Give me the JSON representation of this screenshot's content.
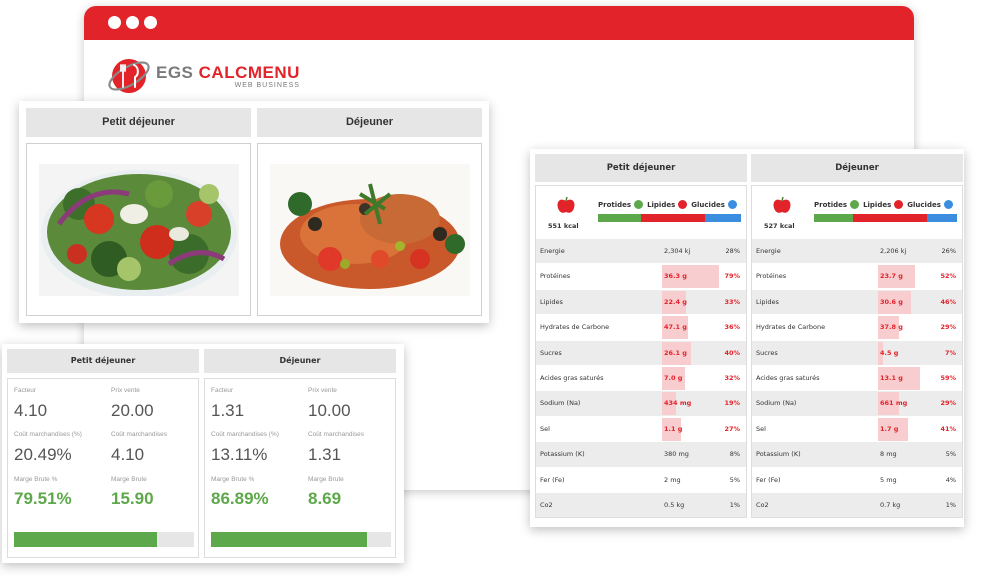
{
  "app": {
    "brand_main_1": "EGS",
    "brand_main_2": "CALCMENU",
    "brand_sub": "WEB BUSINESS"
  },
  "colors": {
    "accent": "#e2232a",
    "green": "#5da84a",
    "header_bg": "#e6e6e6",
    "blue": "#3b8de0"
  },
  "photos": [
    {
      "label": "Petit déjeuner",
      "image": "salad-photo"
    },
    {
      "label": "Déjeuner",
      "image": "chicken-dish-photo"
    }
  ],
  "pricing": [
    {
      "label": "Petit déjeuner",
      "facteur_label": "Facteur",
      "facteur": "4.10",
      "prix_label": "Prix vente",
      "prix": "20.00",
      "cout_pct_label": "Coût marchandises (%)",
      "cout_pct": "20.49%",
      "cout_label": "Coût marchandises",
      "cout": "4.10",
      "marge_pct_label": "Marge Brute %",
      "marge_pct": "79.51%",
      "marge_label": "Marge Brute",
      "marge": "15.90",
      "progress": 0.795
    },
    {
      "label": "Déjeuner",
      "facteur_label": "Facteur",
      "facteur": "1.31",
      "prix_label": "Prix vente",
      "prix": "10.00",
      "cout_pct_label": "Coût marchandises (%)",
      "cout_pct": "13.11%",
      "cout_label": "Coût marchandises",
      "cout": "1.31",
      "marge_pct_label": "Marge Brute %",
      "marge_pct": "86.89%",
      "marge_label": "Marge Brute",
      "marge": "8.69",
      "progress": 0.869
    }
  ],
  "nutrition": [
    {
      "label": "Petit déjeuner",
      "kcal": "551 kcal",
      "legend": [
        "Protides",
        "Lipides",
        "Glucides"
      ],
      "macro": [
        0.3,
        0.45,
        0.25
      ],
      "rows": [
        {
          "name": "Energie",
          "value": "2,304 kj",
          "pct": "28%",
          "level": 0,
          "alert": false
        },
        {
          "name": "Protéines",
          "value": "36.3 g",
          "pct": "79%",
          "level": 0.79,
          "alert": true
        },
        {
          "name": "Lipides",
          "value": "22.4 g",
          "pct": "33%",
          "level": 0.33,
          "alert": true
        },
        {
          "name": "Hydrates de Carbone",
          "value": "47.1 g",
          "pct": "36%",
          "level": 0.36,
          "alert": true
        },
        {
          "name": "Sucres",
          "value": "26.1 g",
          "pct": "40%",
          "level": 0.4,
          "alert": true
        },
        {
          "name": "Acides gras saturés",
          "value": "7.0 g",
          "pct": "32%",
          "level": 0.32,
          "alert": true
        },
        {
          "name": "Sodium (Na)",
          "value": "434 mg",
          "pct": "19%",
          "level": 0.19,
          "alert": true
        },
        {
          "name": "Sel",
          "value": "1.1 g",
          "pct": "27%",
          "level": 0.27,
          "alert": true
        },
        {
          "name": "Potassium (K)",
          "value": "380 mg",
          "pct": "8%",
          "level": 0,
          "alert": false
        },
        {
          "name": "Fer (Fe)",
          "value": "2 mg",
          "pct": "5%",
          "level": 0,
          "alert": false
        },
        {
          "name": "Co2",
          "value": "0.5 kg",
          "pct": "1%",
          "level": 0,
          "alert": false
        }
      ]
    },
    {
      "label": "Déjeuner",
      "kcal": "527 kcal",
      "legend": [
        "Protides",
        "Lipides",
        "Glucides"
      ],
      "macro": [
        0.27,
        0.52,
        0.21
      ],
      "rows": [
        {
          "name": "Energie",
          "value": "2,206 kj",
          "pct": "26%",
          "level": 0,
          "alert": false
        },
        {
          "name": "Protéines",
          "value": "23.7 g",
          "pct": "52%",
          "level": 0.52,
          "alert": true
        },
        {
          "name": "Lipides",
          "value": "30.6 g",
          "pct": "46%",
          "level": 0.46,
          "alert": true
        },
        {
          "name": "Hydrates de Carbone",
          "value": "37.8 g",
          "pct": "29%",
          "level": 0.29,
          "alert": true
        },
        {
          "name": "Sucres",
          "value": "4.5 g",
          "pct": "7%",
          "level": 0.07,
          "alert": true
        },
        {
          "name": "Acides gras saturés",
          "value": "13.1 g",
          "pct": "59%",
          "level": 0.59,
          "alert": true
        },
        {
          "name": "Sodium (Na)",
          "value": "661 mg",
          "pct": "29%",
          "level": 0.29,
          "alert": true
        },
        {
          "name": "Sel",
          "value": "1.7 g",
          "pct": "41%",
          "level": 0.41,
          "alert": true
        },
        {
          "name": "Potassium (K)",
          "value": "8 mg",
          "pct": "5%",
          "level": 0,
          "alert": false
        },
        {
          "name": "Fer (Fe)",
          "value": "5 mg",
          "pct": "4%",
          "level": 0,
          "alert": false
        },
        {
          "name": "Co2",
          "value": "0.7 kg",
          "pct": "1%",
          "level": 0,
          "alert": false
        }
      ]
    }
  ]
}
